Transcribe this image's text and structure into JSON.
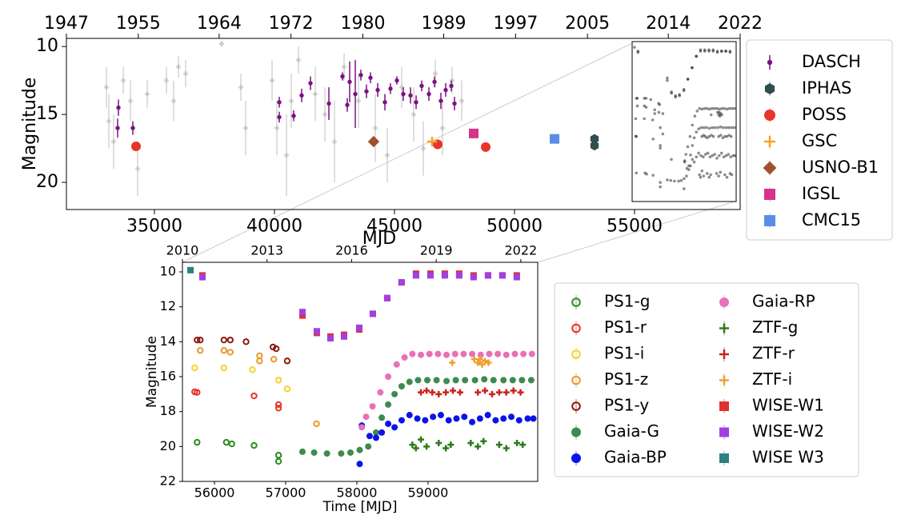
{
  "chart_data": [
    {
      "type": "scatter",
      "x_label": "MJD",
      "y_label": "Magnitude",
      "xlim": [
        31333,
        59400
      ],
      "xticks": [
        35000,
        40000,
        45000,
        50000,
        55000
      ],
      "ylim": [
        22,
        9.4
      ],
      "yticks": [
        10,
        15,
        20
      ],
      "x2lim": [
        1947,
        2022
      ],
      "x2ticks": [
        1947,
        1955,
        1964,
        1972,
        1980,
        1989,
        1997,
        2005,
        2014,
        2022
      ],
      "legend": "right",
      "legend_columns": 1,
      "series": [
        {
          "color": "#aaaaaa",
          "marker": "+",
          "x": [
            33000,
            33100,
            33300,
            33700,
            34000,
            34300,
            34700,
            35500,
            35800,
            36000,
            36300,
            38600,
            38800,
            39900,
            40100,
            40500,
            40700,
            41000,
            41700,
            42100,
            42500,
            42900,
            43500,
            44200,
            44700,
            45300,
            45800,
            46200,
            46700,
            47000,
            47400,
            47800,
            37800
          ],
          "values": [
            13,
            15.5,
            17,
            12.5,
            14,
            19,
            13.5,
            12.5,
            14,
            11.5,
            12,
            13,
            16,
            12.5,
            16,
            18,
            14,
            11,
            13.5,
            15,
            17,
            11.5,
            14,
            16,
            18,
            13,
            15,
            17.5,
            12,
            16,
            12.5,
            14,
            9.8
          ],
          "errors": [
            1.5,
            2,
            2,
            1,
            1.5,
            2,
            1,
            1,
            1.5,
            0.8,
            1,
            1,
            2,
            1.5,
            2,
            3,
            2,
            1,
            2,
            2,
            3,
            1,
            2,
            2.5,
            2,
            1.5,
            2,
            2,
            1,
            2,
            1,
            1.5,
            0.2
          ]
        },
        {
          "name": "DASCH",
          "color": "#7b1180",
          "marker": "|",
          "x": [
            33467,
            33500,
            34100,
            40200,
            40200,
            40800,
            41133,
            41500,
            42267,
            42833,
            43033,
            43133,
            43367,
            43600,
            43833,
            44000,
            44300,
            44600,
            44833,
            45100,
            45367,
            45667,
            45900,
            46133,
            46433,
            46667,
            46933,
            47133,
            47367,
            47500
          ],
          "values": [
            16.0,
            14.5,
            16.0,
            14.1,
            15.2,
            15.1,
            13.6,
            12.7,
            14.2,
            12.2,
            14.3,
            12.6,
            13.5,
            12.1,
            13.3,
            12.3,
            13.2,
            14.1,
            13.1,
            12.5,
            13.5,
            13.6,
            14.1,
            12.9,
            13.5,
            12.6,
            14.0,
            13.2,
            12.9,
            14.2
          ],
          "errors": [
            0.7,
            0.6,
            0.5,
            0.4,
            0.4,
            0.4,
            0.5,
            0.5,
            1.2,
            0.3,
            0.5,
            1.5,
            2.5,
            0.4,
            0.5,
            0.4,
            0.5,
            0.6,
            0.4,
            0.3,
            0.5,
            0.6,
            0.5,
            0.4,
            0.5,
            0.4,
            0.6,
            0.5,
            0.4,
            0.5
          ]
        },
        {
          "name": "IPHAS",
          "color": "#2f4f4f",
          "marker": "h",
          "x": [
            53333,
            53333
          ],
          "values": [
            16.8,
            17.3
          ]
        },
        {
          "name": "POSS",
          "color": "#e8352b",
          "marker": "o",
          "x": [
            34233,
            46800,
            48800
          ],
          "values": [
            17.35,
            17.2,
            17.4
          ]
        },
        {
          "name": "GSC",
          "color": "#f5a02a",
          "marker": "+",
          "x": [
            46567
          ],
          "values": [
            17.0
          ]
        },
        {
          "name": "USNO-B1",
          "color": "#a0522d",
          "marker": "D",
          "x": [
            44133
          ],
          "values": [
            17.0
          ]
        },
        {
          "name": "IGSL",
          "color": "#d6338a",
          "marker": "s",
          "x": [
            48300
          ],
          "values": [
            16.4
          ]
        },
        {
          "name": "CMC15",
          "color": "#5a8de8",
          "marker": "s",
          "x": [
            51667
          ],
          "values": [
            16.8
          ]
        }
      ]
    },
    {
      "type": "scatter",
      "x_label": "Time [MJD]",
      "y_label": "Magnitude",
      "xlim": [
        55550,
        60541
      ],
      "xticks": [
        56000,
        57000,
        58000,
        59000
      ],
      "ylim": [
        22,
        9.45
      ],
      "yticks": [
        10,
        12,
        14,
        16,
        18,
        20,
        22
      ],
      "x2lim": [
        2010,
        2022.6
      ],
      "x2ticks": [
        2010,
        2013,
        2016,
        2019,
        2022
      ],
      "legend": "right",
      "legend_columns": 2,
      "series": [
        {
          "name": "PS1-g",
          "color": "#2e8b22",
          "marker": "o-open",
          "x": [
            55756,
            56167,
            56244,
            56556,
            56900,
            56900
          ],
          "values": [
            19.76,
            19.76,
            19.85,
            19.94,
            20.5,
            20.85
          ]
        },
        {
          "name": "PS1-r",
          "color": "#e8352b",
          "marker": "o-open",
          "x": [
            55722,
            55756,
            56556,
            56900,
            56900
          ],
          "values": [
            16.87,
            16.9,
            17.1,
            17.6,
            17.8
          ]
        },
        {
          "name": "PS1-i",
          "color": "#f2d22e",
          "marker": "o-open",
          "x": [
            55722,
            56133,
            56533,
            56900,
            57022
          ],
          "values": [
            15.5,
            15.5,
            15.6,
            16.2,
            16.7
          ]
        },
        {
          "name": "PS1-z",
          "color": "#e89a2e",
          "marker": "o-open",
          "x": [
            55800,
            56133,
            56222,
            56633,
            56633,
            56833,
            57433
          ],
          "values": [
            14.5,
            14.5,
            14.6,
            14.8,
            15.1,
            15.0,
            18.7
          ]
        },
        {
          "name": "PS1-y",
          "color": "#8b1a0e",
          "marker": "o-open",
          "x": [
            55756,
            55800,
            56133,
            56222,
            56444,
            56822,
            56867,
            57022
          ],
          "values": [
            13.9,
            13.9,
            13.9,
            13.9,
            14.0,
            14.3,
            14.4,
            15.1
          ]
        },
        {
          "name": "Gaia-G",
          "color": "#3d8b4e",
          "marker": "o",
          "x": [
            57236,
            57400,
            57580,
            57780,
            57910,
            58040,
            58160,
            58270,
            58350,
            58440,
            58530,
            58630,
            58740,
            58860,
            58990,
            59120,
            59260,
            59390,
            59520,
            59660,
            59790,
            59920,
            60060,
            60190,
            60320,
            60450
          ],
          "values": [
            20.3,
            20.35,
            20.4,
            20.4,
            20.35,
            20.2,
            20.0,
            19.2,
            18.35,
            17.6,
            17.0,
            16.55,
            16.3,
            16.2,
            16.2,
            16.2,
            16.25,
            16.2,
            16.2,
            16.2,
            16.15,
            16.2,
            16.2,
            16.2,
            16.2,
            16.2
          ]
        },
        {
          "name": "Gaia-BP",
          "color": "#0a14e8",
          "marker": "o",
          "x": [
            58040,
            58070,
            58180,
            58270,
            58350,
            58440,
            58530,
            58630,
            58740,
            58850,
            58960,
            59070,
            59180,
            59290,
            59400,
            59510,
            59620,
            59730,
            59840,
            59950,
            60060,
            60170,
            60280,
            60400,
            60480
          ],
          "values": [
            21.0,
            18.8,
            19.4,
            19.5,
            19.2,
            18.7,
            18.9,
            18.5,
            18.2,
            18.4,
            18.5,
            18.3,
            18.2,
            18.5,
            18.4,
            18.3,
            18.6,
            18.4,
            18.2,
            18.5,
            18.4,
            18.3,
            18.5,
            18.4,
            18.4
          ]
        },
        {
          "name": "Gaia-RP",
          "color": "#e86fb8",
          "marker": "o",
          "x": [
            58070,
            58130,
            58220,
            58330,
            58440,
            58560,
            58670,
            58780,
            58900,
            59020,
            59140,
            59260,
            59380,
            59500,
            59620,
            59740,
            59860,
            59980,
            60100,
            60220,
            60340,
            60460
          ],
          "values": [
            18.9,
            18.3,
            17.7,
            16.9,
            16.0,
            15.3,
            14.9,
            14.7,
            14.75,
            14.7,
            14.7,
            14.75,
            14.7,
            14.7,
            14.7,
            14.75,
            14.7,
            14.7,
            14.75,
            14.7,
            14.7,
            14.7
          ]
        },
        {
          "name": "ZTF-g",
          "color": "#2e7a1a",
          "marker": "+",
          "x": [
            58780,
            58830,
            58900,
            58980,
            59150,
            59250,
            59320,
            59600,
            59700,
            59780,
            60000,
            60100,
            60250,
            60330
          ],
          "values": [
            19.9,
            20.1,
            19.6,
            20.0,
            19.8,
            20.1,
            19.9,
            19.8,
            20.0,
            19.7,
            19.9,
            20.1,
            19.8,
            19.9
          ]
        },
        {
          "name": "ZTF-r",
          "color": "#c8241a",
          "marker": "+",
          "x": [
            58900,
            58980,
            59060,
            59150,
            59250,
            59350,
            59450,
            59700,
            59800,
            59900,
            60000,
            60100,
            60200,
            60300
          ],
          "values": [
            16.9,
            16.8,
            16.9,
            17.0,
            16.9,
            16.8,
            16.9,
            16.9,
            16.8,
            17.0,
            16.9,
            16.9,
            16.8,
            16.9
          ]
        },
        {
          "name": "ZTF-i",
          "color": "#f0a030",
          "marker": "+",
          "x": [
            59340,
            59650,
            59700,
            59730,
            59760,
            59800,
            59850
          ],
          "values": [
            15.2,
            15.0,
            15.2,
            15.0,
            15.3,
            15.1,
            15.2
          ]
        },
        {
          "name": "WISE-W1",
          "color": "#e03030",
          "marker": "s",
          "x": [
            55831,
            57236,
            57438,
            57629,
            57820,
            58034,
            58225,
            58427,
            58629,
            58831,
            59034,
            59236,
            59438,
            59640,
            59843,
            60045,
            60247
          ],
          "values": [
            10.2,
            12.5,
            13.5,
            13.7,
            13.6,
            13.3,
            12.4,
            11.5,
            10.6,
            10.1,
            10.1,
            10.1,
            10.1,
            10.2,
            10.2,
            10.2,
            10.2
          ]
        },
        {
          "name": "WISE-W2",
          "color": "#a040e0",
          "marker": "s",
          "x": [
            55831,
            57236,
            57438,
            57629,
            57820,
            58034,
            58225,
            58427,
            58629,
            58831,
            59034,
            59236,
            59438,
            59640,
            59843,
            60045,
            60247
          ],
          "values": [
            10.3,
            12.3,
            13.4,
            13.8,
            13.7,
            13.2,
            12.4,
            11.5,
            10.6,
            10.2,
            10.2,
            10.2,
            10.2,
            10.3,
            10.2,
            10.2,
            10.3
          ]
        },
        {
          "name": "WISE W3",
          "color": "#2e8080",
          "marker": "s",
          "x": [
            55663
          ],
          "values": [
            9.9
          ]
        }
      ]
    }
  ]
}
